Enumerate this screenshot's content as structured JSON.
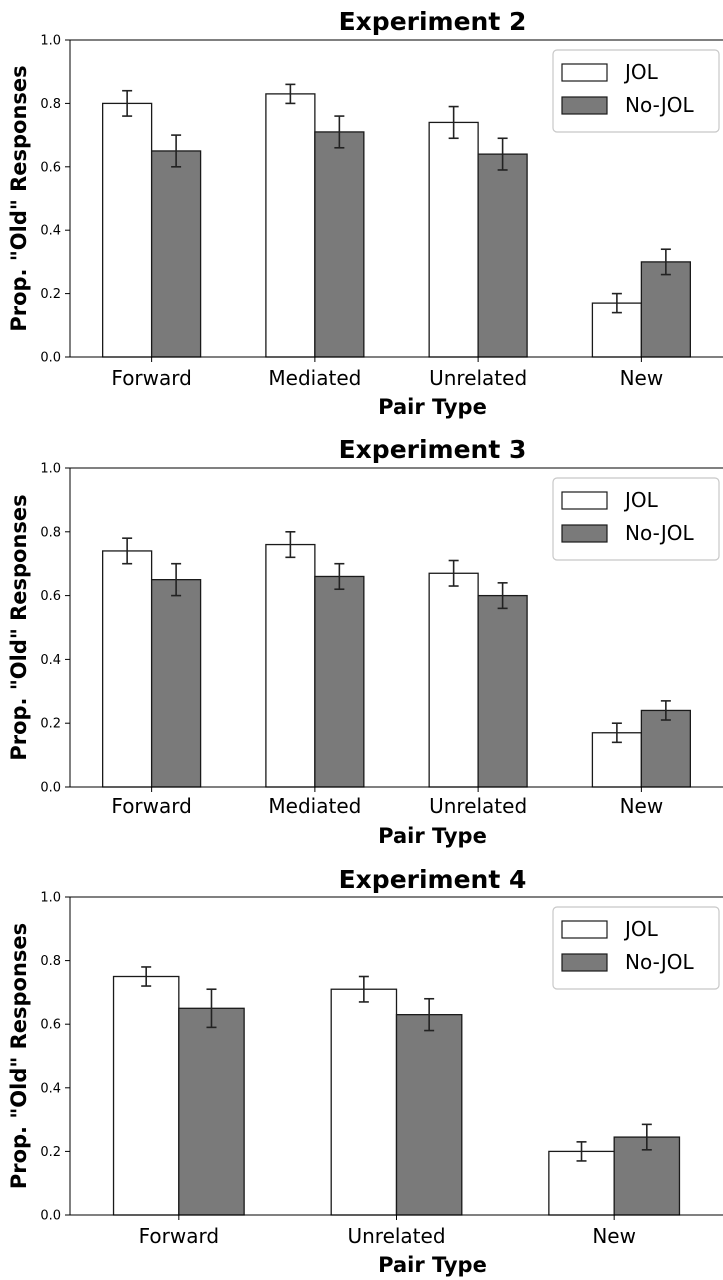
{
  "colors": {
    "jol": "#ffffff",
    "no_jol": "#7a7a7a",
    "edge": "#1a1a1a",
    "axis": "#000000",
    "legend_border": "#c8c8c8"
  },
  "chart_data": [
    {
      "type": "bar",
      "title": "Experiment 2",
      "xlabel": "Pair Type",
      "ylabel": "Prop. \"Old\" Responses",
      "ylim": [
        0,
        1.0
      ],
      "yticks": [
        "0.0",
        "0.2",
        "0.4",
        "0.6",
        "0.8",
        "1.0"
      ],
      "categories": [
        "Forward",
        "Mediated",
        "Unrelated",
        "New"
      ],
      "legend_position": "top-right",
      "grid": false,
      "series": [
        {
          "name": "JOL",
          "values": [
            0.8,
            0.83,
            0.74,
            0.17
          ],
          "errors": [
            0.04,
            0.03,
            0.05,
            0.03
          ]
        },
        {
          "name": "No-JOL",
          "values": [
            0.65,
            0.71,
            0.64,
            0.3
          ],
          "errors": [
            0.05,
            0.05,
            0.05,
            0.04
          ]
        }
      ]
    },
    {
      "type": "bar",
      "title": "Experiment 3",
      "xlabel": "Pair Type",
      "ylabel": "Prop. \"Old\" Responses",
      "ylim": [
        0,
        1.0
      ],
      "yticks": [
        "0.0",
        "0.2",
        "0.4",
        "0.6",
        "0.8",
        "1.0"
      ],
      "categories": [
        "Forward",
        "Mediated",
        "Unrelated",
        "New"
      ],
      "legend_position": "top-right",
      "grid": false,
      "series": [
        {
          "name": "JOL",
          "values": [
            0.74,
            0.76,
            0.67,
            0.17
          ],
          "errors": [
            0.04,
            0.04,
            0.04,
            0.03
          ]
        },
        {
          "name": "No-JOL",
          "values": [
            0.65,
            0.66,
            0.6,
            0.24
          ],
          "errors": [
            0.05,
            0.04,
            0.04,
            0.03
          ]
        }
      ]
    },
    {
      "type": "bar",
      "title": "Experiment 4",
      "xlabel": "Pair Type",
      "ylabel": "Prop. \"Old\" Responses",
      "ylim": [
        0,
        1.0
      ],
      "yticks": [
        "0.0",
        "0.2",
        "0.4",
        "0.6",
        "0.8",
        "1.0"
      ],
      "categories": [
        "Forward",
        "Unrelated",
        "New"
      ],
      "legend_position": "top-right",
      "grid": false,
      "series": [
        {
          "name": "JOL",
          "values": [
            0.75,
            0.71,
            0.2
          ],
          "errors": [
            0.03,
            0.04,
            0.03
          ]
        },
        {
          "name": "No-JOL",
          "values": [
            0.65,
            0.63,
            0.245
          ],
          "errors": [
            0.06,
            0.05,
            0.04
          ]
        }
      ]
    }
  ]
}
